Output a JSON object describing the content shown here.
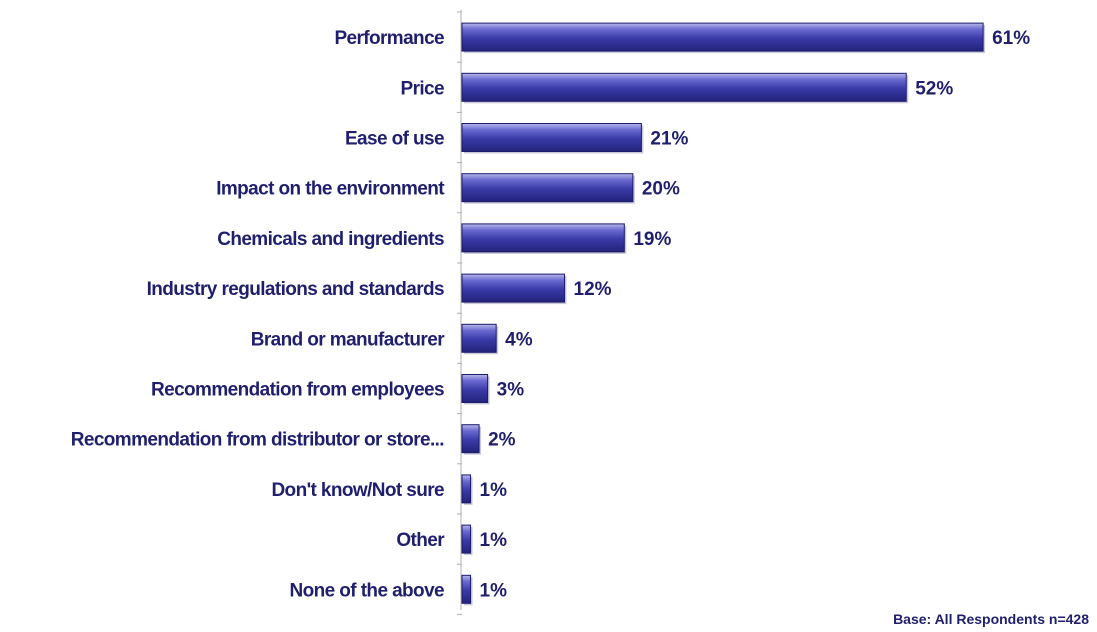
{
  "chart_data": {
    "type": "bar",
    "orientation": "horizontal",
    "categories": [
      "Performance",
      "Price",
      "Ease of use",
      "Impact on the environment",
      "Chemicals and ingredients",
      "Industry regulations and standards",
      "Brand or manufacturer",
      "Recommendation from employees",
      "Recommendation from distributor or store...",
      "Don't know/Not sure",
      "Other",
      "None of the above"
    ],
    "values": [
      61,
      52,
      21,
      20,
      19,
      12,
      4,
      3,
      2,
      1,
      1,
      1
    ],
    "value_labels": [
      "61%",
      "52%",
      "21%",
      "20%",
      "19%",
      "12%",
      "4%",
      "3%",
      "2%",
      "1%",
      "1%",
      "1%"
    ],
    "unit": "%",
    "xlim": [
      0,
      70
    ],
    "grid": false,
    "legend": "none",
    "bar_color": "#3a3a9e"
  },
  "footnote": "Base:  All Respondents n=428"
}
